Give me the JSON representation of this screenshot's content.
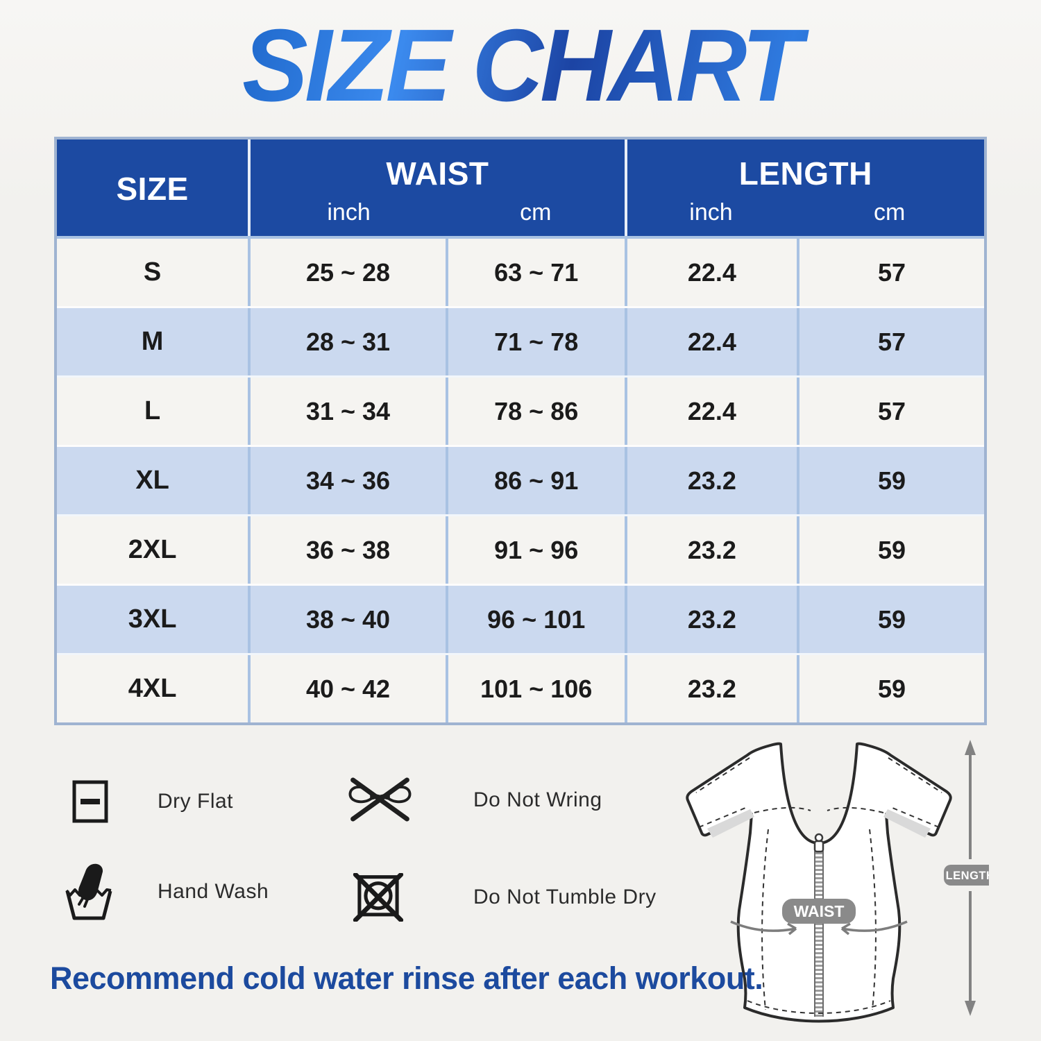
{
  "title": "SIZE CHART",
  "table": {
    "headers": {
      "size": "SIZE",
      "waist": "WAIST",
      "length": "LENGTH",
      "unit_inch": "inch",
      "unit_cm": "cm"
    },
    "rows": [
      {
        "size": "S",
        "waist_inch": "25 ~ 28",
        "waist_cm": "63 ~ 71",
        "length_inch": "22.4",
        "length_cm": "57"
      },
      {
        "size": "M",
        "waist_inch": "28 ~ 31",
        "waist_cm": "71 ~ 78",
        "length_inch": "22.4",
        "length_cm": "57"
      },
      {
        "size": "L",
        "waist_inch": "31 ~ 34",
        "waist_cm": "78 ~ 86",
        "length_inch": "22.4",
        "length_cm": "57"
      },
      {
        "size": "XL",
        "waist_inch": "34 ~ 36",
        "waist_cm": "86 ~ 91",
        "length_inch": "23.2",
        "length_cm": "59"
      },
      {
        "size": "2XL",
        "waist_inch": "36 ~ 38",
        "waist_cm": "91 ~ 96",
        "length_inch": "23.2",
        "length_cm": "59"
      },
      {
        "size": "3XL",
        "waist_inch": "38 ~ 40",
        "waist_cm": "96 ~ 101",
        "length_inch": "23.2",
        "length_cm": "59"
      },
      {
        "size": "4XL",
        "waist_inch": "40 ~ 42",
        "waist_cm": "101 ~ 106",
        "length_inch": "23.2",
        "length_cm": "59"
      }
    ]
  },
  "care_instructions": [
    {
      "icon": "dry-flat-icon",
      "label": "Dry Flat"
    },
    {
      "icon": "do-not-wring-icon",
      "label": "Do Not Wring"
    },
    {
      "icon": "hand-wash-icon",
      "label": "Hand Wash"
    },
    {
      "icon": "do-not-tumble-dry-icon",
      "label": "Do Not Tumble Dry"
    }
  ],
  "diagram": {
    "waist_label": "WAIST",
    "length_label": "LENGTH"
  },
  "footer_note": "Recommend cold water rinse after each workout.",
  "colors": {
    "header_blue": "#1c4aa2",
    "row_light": "#f5f4f1",
    "row_blue": "#cbd9ef",
    "grid_border": "#a9c2e3",
    "title_blue": "#1d52b0",
    "note_blue": "#1c4a9e",
    "badge_gray": "#8a8a8a"
  }
}
